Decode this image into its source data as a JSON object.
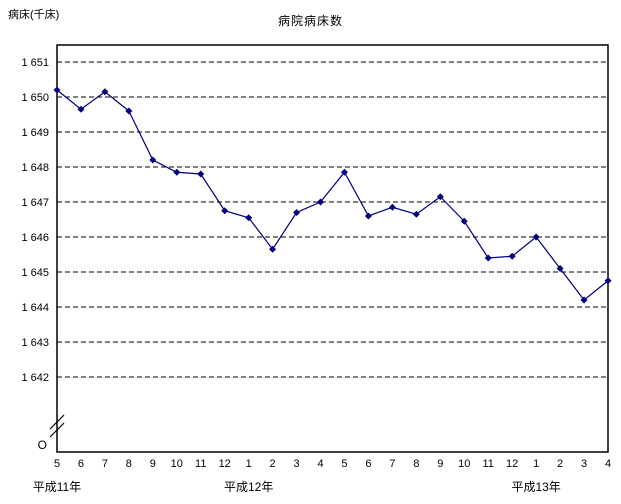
{
  "page": {
    "background": "#ffffff"
  },
  "chart_data": {
    "type": "line",
    "title": "病院病床数",
    "ylabel": "病床(千床)",
    "xlabel": "",
    "origin_label": "O",
    "axis_break": true,
    "grid": "dashed-horizontal",
    "legend": "none",
    "line_color": "#000080",
    "marker": "diamond",
    "marker_color": "#000080",
    "ylim": [
      1642,
      1651
    ],
    "y_ticks": [
      1651,
      1650,
      1649,
      1648,
      1647,
      1646,
      1645,
      1644,
      1643,
      1642
    ],
    "y_tick_labels": [
      "1 651",
      "1 650",
      "1 649",
      "1 648",
      "1 647",
      "1 646",
      "1 645",
      "1 644",
      "1 643",
      "1 642"
    ],
    "x_tick_labels": [
      "5",
      "6",
      "7",
      "8",
      "9",
      "10",
      "11",
      "12",
      "1",
      "2",
      "3",
      "4",
      "5",
      "6",
      "7",
      "8",
      "9",
      "10",
      "11",
      "12",
      "1",
      "2",
      "3",
      "4"
    ],
    "era_labels": [
      {
        "label": "平成11年",
        "index": 0
      },
      {
        "label": "平成12年",
        "index": 8
      },
      {
        "label": "平成13年",
        "index": 20
      }
    ],
    "series": [
      {
        "name": "病院病床数",
        "values": [
          1650.2,
          1649.65,
          1650.15,
          1649.6,
          1648.2,
          1647.85,
          1647.8,
          1646.75,
          1646.55,
          1645.65,
          1646.7,
          1647.0,
          1647.85,
          1646.6,
          1646.85,
          1646.65,
          1647.15,
          1646.45,
          1645.4,
          1645.45,
          1646.0,
          1645.1,
          1644.2,
          1644.75
        ]
      }
    ]
  }
}
